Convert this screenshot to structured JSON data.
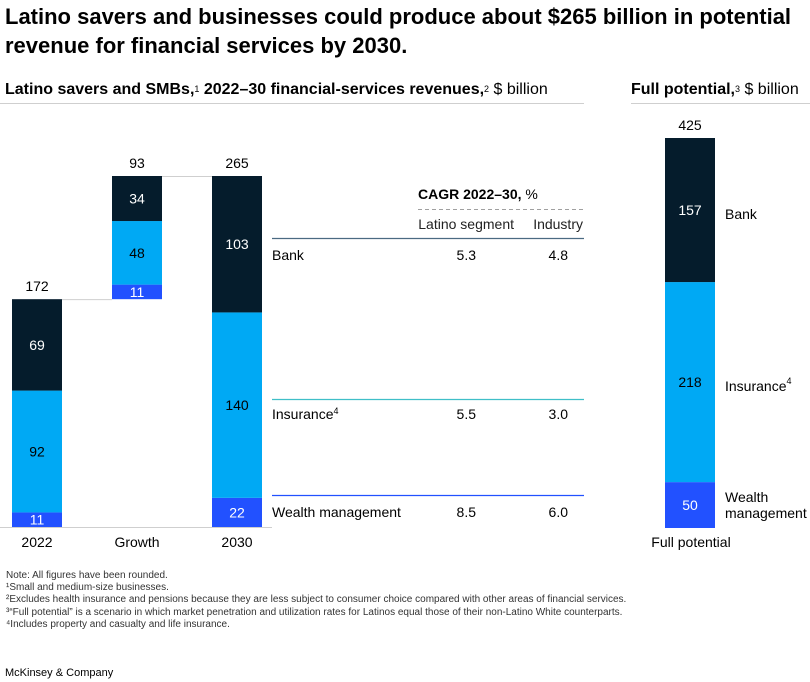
{
  "title": "Latino savers and businesses could produce about $265 billion in potential revenue for financial services by 2030.",
  "left_header": {
    "bold": "Latino savers and SMBs,",
    "sup1": "1",
    "bold2": " 2022–30 financial-services revenues,",
    "sup2": "2",
    "unit": " $ billion"
  },
  "right_header": {
    "bold": "Full potential,",
    "sup": "3",
    "unit": " $ billion"
  },
  "colors": {
    "bank": "#051c2c",
    "insurance": "#00a9f4",
    "wealth": "#2251ff",
    "bank_rule": "#4b6a82",
    "insurance_rule": "#3fbfc8",
    "wealth_rule": "#2251ff"
  },
  "chart_data": [
    {
      "type": "bar",
      "subtype": "stacked-waterfall",
      "categories": [
        "2022",
        "Growth",
        "2030"
      ],
      "series": [
        {
          "name": "Wealth management",
          "values": [
            11,
            11,
            22
          ]
        },
        {
          "name": "Insurance",
          "values": [
            92,
            48,
            140
          ]
        },
        {
          "name": "Bank",
          "values": [
            69,
            34,
            103
          ]
        }
      ],
      "totals": [
        "172",
        "93",
        "265"
      ],
      "ylim": [
        0,
        265
      ]
    },
    {
      "type": "bar",
      "subtype": "stacked",
      "categories": [
        "Full potential"
      ],
      "series": [
        {
          "name": "Wealth management",
          "values": [
            50
          ]
        },
        {
          "name": "Insurance",
          "values": [
            218
          ]
        },
        {
          "name": "Bank",
          "values": [
            157
          ]
        }
      ],
      "totals": [
        "425"
      ],
      "legend_labels": [
        "Bank",
        "Insurance",
        "Wealth management"
      ],
      "legend_sup": [
        "",
        "4",
        ""
      ]
    },
    {
      "type": "table",
      "title_bold": "CAGR 2022–30,",
      "title_unit": " %",
      "columns": [
        "Latino segment",
        "Industry"
      ],
      "rows": [
        {
          "label": "Bank",
          "sup": "",
          "values": [
            "5.3",
            "4.8"
          ]
        },
        {
          "label": "Insurance",
          "sup": "4",
          "values": [
            "5.5",
            "3.0"
          ]
        },
        {
          "label": "Wealth management",
          "sup": "",
          "values": [
            "8.5",
            "6.0"
          ]
        }
      ]
    }
  ],
  "notes": [
    "Note: All figures have been rounded.",
    "¹Small and medium-size businesses.",
    "²Excludes health insurance and pensions because they are less subject to consumer choice compared with other areas of financial services.",
    "³“Full potential” is a scenario in which market penetration and utilization rates for Latinos equal those of their non-Latino White counterparts.",
    "⁴Includes property and casualty and life insurance."
  ],
  "footer": "McKinsey & Company"
}
